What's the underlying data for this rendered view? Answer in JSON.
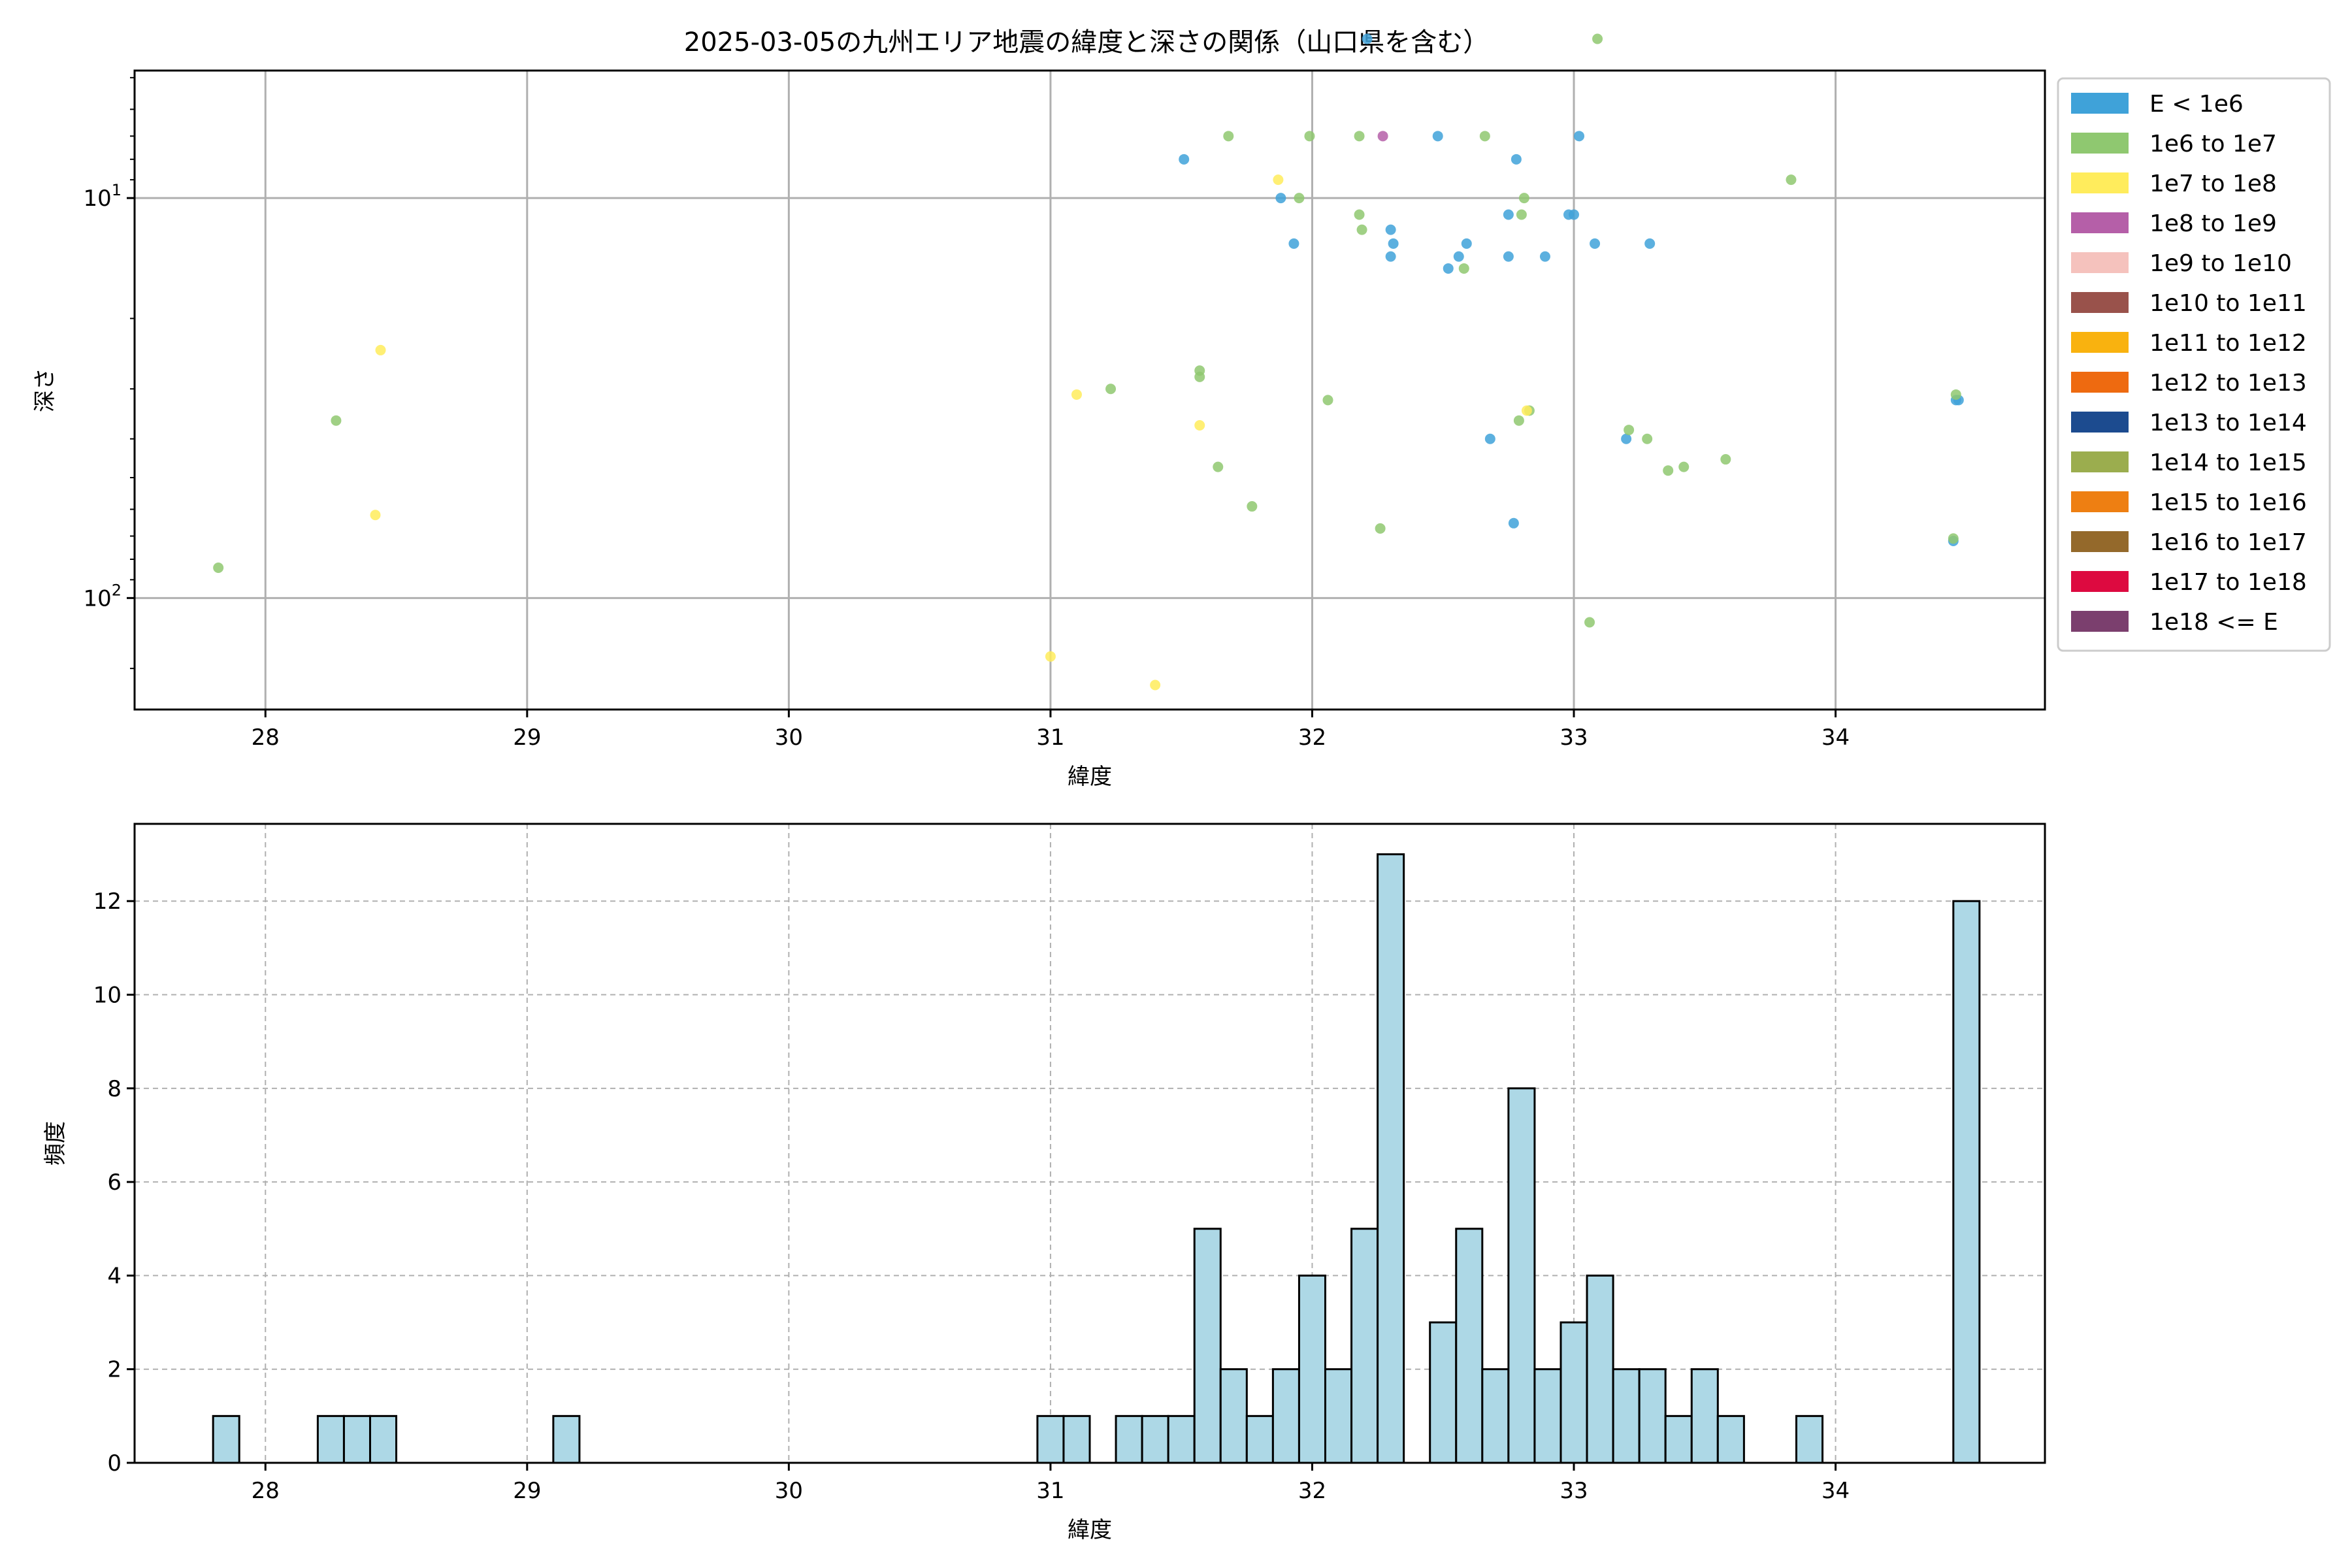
{
  "chart_data": [
    {
      "type": "scatter",
      "title": "2025-03-05の九州エリア地震の緯度と深さの関係（山口県を含む）",
      "xlabel": "緯度",
      "ylabel": "深さ",
      "xlim": [
        27.5,
        34.8
      ],
      "ylim": [
        190,
        4.8
      ],
      "yscale": "log",
      "y_inverted": true,
      "grid": true,
      "legend_placement": "outside-right",
      "x_ticks": [
        28,
        29,
        30,
        31,
        32,
        33,
        34
      ],
      "y_ticks": [
        {
          "value": 10,
          "base": "10",
          "exp": "1"
        },
        {
          "value": 100,
          "base": "10",
          "exp": "2"
        }
      ],
      "legend": [
        {
          "label": "E < 1e6",
          "color": "#3fa2d9"
        },
        {
          "label": "1e6 to 1e7",
          "color": "#8fc870"
        },
        {
          "label": "1e7 to 1e8",
          "color": "#ffec5c"
        },
        {
          "label": "1e8 to 1e9",
          "color": "#b55fa8"
        },
        {
          "label": "1e9 to 1e10",
          "color": "#f5c2bd"
        },
        {
          "label": "1e10 to 1e11",
          "color": "#99524b"
        },
        {
          "label": "1e11 to 1e12",
          "color": "#f9b20f"
        },
        {
          "label": "1e12 to 1e13",
          "color": "#ee6a10"
        },
        {
          "label": "1e13 to 1e14",
          "color": "#1c4b8f"
        },
        {
          "label": "1e14 to 1e15",
          "color": "#9bad4e"
        },
        {
          "label": "1e15 to 1e16",
          "color": "#ee7f12"
        },
        {
          "label": "1e16 to 1e17",
          "color": "#94692b"
        },
        {
          "label": "1e17 to 1e18",
          "color": "#dd0a40"
        },
        {
          "label": "1e18 <= E",
          "color": "#7b3f6e"
        }
      ],
      "series": [
        {
          "class": 0,
          "points": [
            [
              32.21,
              4.0
            ],
            [
              31.51,
              8.0
            ],
            [
              31.88,
              10.0
            ],
            [
              31.93,
              13.0
            ],
            [
              32.48,
              7.0
            ],
            [
              32.78,
              8.0
            ],
            [
              32.3,
              12.0
            ],
            [
              32.31,
              13.0
            ],
            [
              32.3,
              14.0
            ],
            [
              32.56,
              14.0
            ],
            [
              32.52,
              15.0
            ],
            [
              32.59,
              13.0
            ],
            [
              32.75,
              11.0
            ],
            [
              32.75,
              14.0
            ],
            [
              32.89,
              14.0
            ],
            [
              33.02,
              7.0
            ],
            [
              33.0,
              11.0
            ],
            [
              32.98,
              11.0
            ],
            [
              33.08,
              13.0
            ],
            [
              33.29,
              13.0
            ],
            [
              32.68,
              40.0
            ],
            [
              32.77,
              65.0
            ],
            [
              33.2,
              40.0
            ],
            [
              34.46,
              32.0
            ],
            [
              34.47,
              32.0
            ],
            [
              34.45,
              72.0
            ]
          ]
        },
        {
          "class": 1,
          "points": [
            [
              33.09,
              4.0
            ],
            [
              31.68,
              7.0
            ],
            [
              31.99,
              7.0
            ],
            [
              32.18,
              7.0
            ],
            [
              32.66,
              7.0
            ],
            [
              31.95,
              10.0
            ],
            [
              32.18,
              11.0
            ],
            [
              32.19,
              12.0
            ],
            [
              32.81,
              10.0
            ],
            [
              32.8,
              11.0
            ],
            [
              32.58,
              15.0
            ],
            [
              33.83,
              9.0
            ],
            [
              31.57,
              27.0
            ],
            [
              31.57,
              28.0
            ],
            [
              31.23,
              30.0
            ],
            [
              32.06,
              32.0
            ],
            [
              31.64,
              47.0
            ],
            [
              31.77,
              59.0
            ],
            [
              32.26,
              67.0
            ],
            [
              32.79,
              36.0
            ],
            [
              32.83,
              34.0
            ],
            [
              33.21,
              38.0
            ],
            [
              33.28,
              40.0
            ],
            [
              33.36,
              48.0
            ],
            [
              33.42,
              47.0
            ],
            [
              33.58,
              45.0
            ],
            [
              33.06,
              115.0
            ],
            [
              34.45,
              71.0
            ],
            [
              34.46,
              31.0
            ],
            [
              28.27,
              36.0
            ],
            [
              27.82,
              84.0
            ]
          ]
        },
        {
          "class": 2,
          "points": [
            [
              31.87,
              9.0
            ],
            [
              31.1,
              31.0
            ],
            [
              31.57,
              37.0
            ],
            [
              32.82,
              34.0
            ],
            [
              28.44,
              24.0
            ],
            [
              28.42,
              62.0
            ],
            [
              31.0,
              140.0
            ],
            [
              31.4,
              165.0
            ]
          ]
        },
        {
          "class": 3,
          "points": [
            [
              32.27,
              7.0
            ]
          ]
        }
      ]
    },
    {
      "type": "bar",
      "subtype": "histogram",
      "xlabel": "緯度",
      "ylabel": "頻度",
      "xlim": [
        27.5,
        34.8
      ],
      "ylim": [
        0,
        13.65
      ],
      "grid": true,
      "x_ticks": [
        28,
        29,
        30,
        31,
        32,
        33,
        34
      ],
      "y_ticks": [
        0,
        2,
        4,
        6,
        8,
        10,
        12
      ],
      "bin_width": 0.1,
      "bins": [
        {
          "x0": 27.8,
          "count": 1
        },
        {
          "x0": 28.2,
          "count": 1
        },
        {
          "x0": 28.3,
          "count": 1
        },
        {
          "x0": 28.4,
          "count": 1
        },
        {
          "x0": 29.1,
          "count": 1
        },
        {
          "x0": 30.95,
          "count": 1
        },
        {
          "x0": 31.05,
          "count": 1
        },
        {
          "x0": 31.25,
          "count": 1
        },
        {
          "x0": 31.35,
          "count": 1
        },
        {
          "x0": 31.45,
          "count": 1
        },
        {
          "x0": 31.55,
          "count": 5
        },
        {
          "x0": 31.65,
          "count": 2
        },
        {
          "x0": 31.75,
          "count": 1
        },
        {
          "x0": 31.85,
          "count": 2
        },
        {
          "x0": 31.95,
          "count": 4
        },
        {
          "x0": 32.05,
          "count": 2
        },
        {
          "x0": 32.15,
          "count": 5
        },
        {
          "x0": 32.25,
          "count": 13
        },
        {
          "x0": 32.45,
          "count": 3
        },
        {
          "x0": 32.55,
          "count": 5
        },
        {
          "x0": 32.65,
          "count": 2
        },
        {
          "x0": 32.75,
          "count": 8
        },
        {
          "x0": 32.85,
          "count": 2
        },
        {
          "x0": 32.95,
          "count": 3
        },
        {
          "x0": 33.05,
          "count": 4
        },
        {
          "x0": 33.15,
          "count": 2
        },
        {
          "x0": 33.25,
          "count": 2
        },
        {
          "x0": 33.35,
          "count": 1
        },
        {
          "x0": 33.45,
          "count": 2
        },
        {
          "x0": 33.55,
          "count": 1
        },
        {
          "x0": 33.85,
          "count": 1
        },
        {
          "x0": 34.45,
          "count": 12
        }
      ]
    }
  ]
}
